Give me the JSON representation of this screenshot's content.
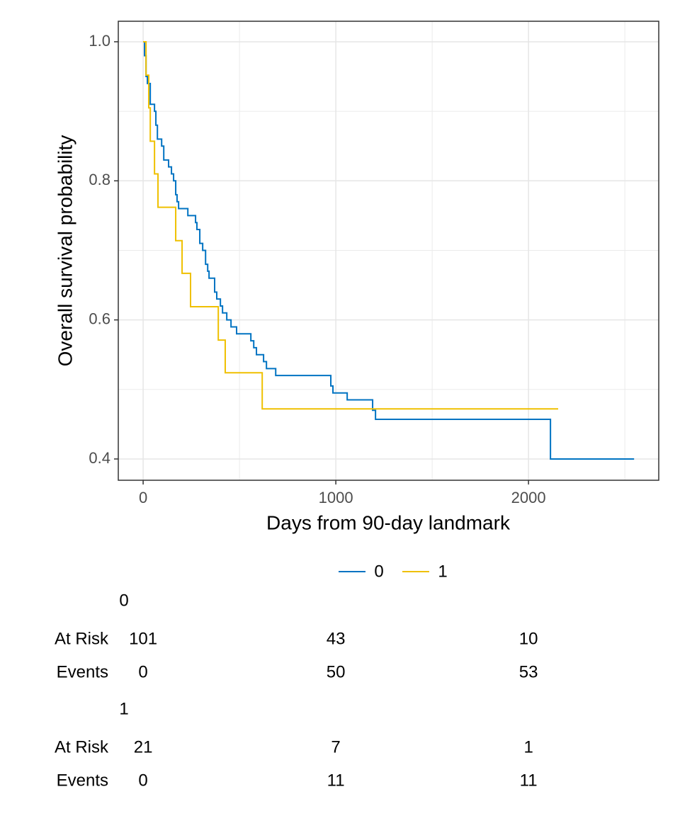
{
  "chart_data": {
    "type": "line",
    "step": "post",
    "x_label": "Days from 90-day landmark",
    "y_label": "Overall survival probability",
    "xlim": [
      -129,
      2676
    ],
    "ylim": [
      0.3694,
      1.0295
    ],
    "xticks": [
      0,
      1000,
      2000
    ],
    "yticks": [
      0.4,
      0.6,
      0.8,
      {
        "value": 1,
        "label": "1.0"
      }
    ],
    "x_minor_ticks": [
      500,
      1500,
      2500
    ],
    "y_minor_ticks": [
      0.5,
      0.7,
      0.9
    ],
    "grid": true,
    "legend": "bottom",
    "series": [
      {
        "name": "0",
        "color": "#0073C2",
        "x": [
          0,
          7,
          15,
          22,
          37,
          59,
          66,
          74,
          96,
          107,
          132,
          147,
          158,
          169,
          176,
          184,
          232,
          272,
          279,
          294,
          309,
          324,
          335,
          342,
          371,
          382,
          401,
          412,
          434,
          456,
          485,
          559,
          574,
          588,
          625,
          640,
          688,
          974,
          985,
          1059,
          1191,
          1206,
          2114,
          2548
        ],
        "values": [
          1,
          0.98,
          0.95,
          0.94,
          0.91,
          0.9,
          0.88,
          0.86,
          0.85,
          0.83,
          0.82,
          0.81,
          0.8,
          0.78,
          0.77,
          0.76,
          0.75,
          0.74,
          0.73,
          0.71,
          0.7,
          0.68,
          0.67,
          0.66,
          0.64,
          0.63,
          0.62,
          0.61,
          0.6,
          0.59,
          0.58,
          0.57,
          0.56,
          0.55,
          0.54,
          0.53,
          0.52,
          0.505,
          0.495,
          0.485,
          0.47,
          0.457,
          0.4,
          0.4
        ]
      },
      {
        "name": "1",
        "color": "#EFC000",
        "x": [
          0,
          15,
          29,
          37,
          59,
          77,
          169,
          202,
          246,
          390,
          426,
          618,
          2154
        ],
        "values": [
          1,
          0.952,
          0.905,
          0.857,
          0.81,
          0.762,
          0.714,
          0.667,
          0.619,
          0.571,
          0.524,
          0.472,
          0.472
        ]
      }
    ],
    "risk_table": [
      {
        "name": "0",
        "rows": [
          {
            "label": "At Risk",
            "values": [
              101,
              43,
              10
            ]
          },
          {
            "label": "Events",
            "values": [
              0,
              50,
              53
            ]
          }
        ]
      },
      {
        "name": "1",
        "rows": [
          {
            "label": "At Risk",
            "values": [
              21,
              7,
              1
            ]
          },
          {
            "label": "Events",
            "values": [
              0,
              11,
              11
            ]
          }
        ]
      }
    ]
  }
}
